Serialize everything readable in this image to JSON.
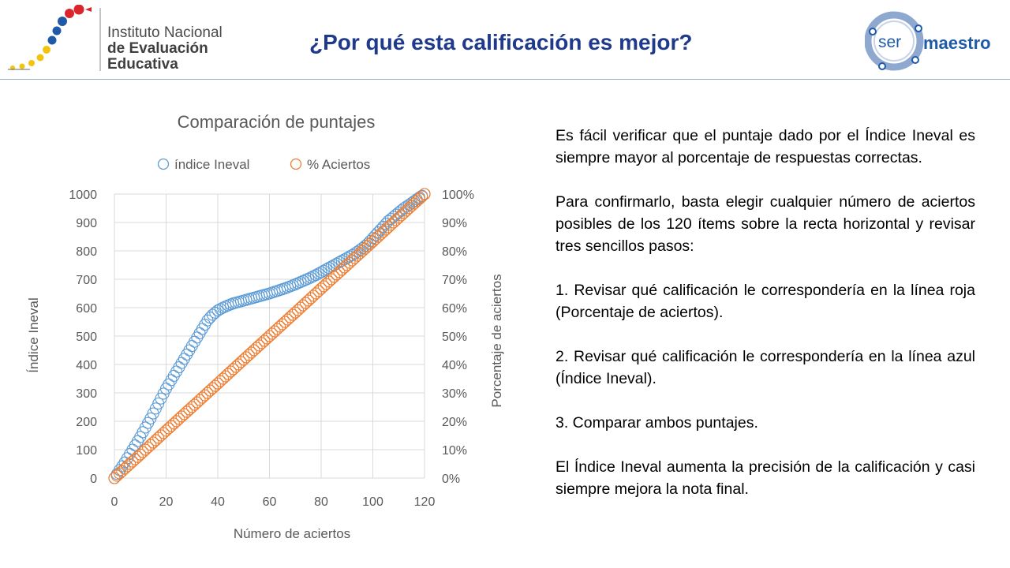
{
  "header": {
    "org_line1": "Instituto Nacional",
    "org_line2": "de Evaluación",
    "org_line3": "Educativa",
    "title": "¿Por qué esta calificación es mejor?",
    "right_logo_ser": "ser",
    "right_logo_maestro": "maestro",
    "colors": {
      "title": "#1f3a8a",
      "logo_blue": "#1f5aa8",
      "logo_red": "#d9262c",
      "logo_yellow": "#f2c40f"
    }
  },
  "chart_data": {
    "type": "scatter",
    "title": "Comparación de puntajes",
    "xlabel": "Número de aciertos",
    "ylabel": "Índice Ineval",
    "y2label": "Porcentaje de aciertos",
    "xlim": [
      0,
      120
    ],
    "ylim": [
      0,
      1000
    ],
    "y2lim": [
      0,
      1
    ],
    "x_ticks": [
      "0",
      "20",
      "40",
      "60",
      "80",
      "100",
      "120"
    ],
    "y_ticks": [
      "0",
      "100",
      "200",
      "300",
      "400",
      "500",
      "600",
      "700",
      "800",
      "900",
      "1000"
    ],
    "y2_ticks": [
      "0%",
      "10%",
      "20%",
      "30%",
      "40%",
      "50%",
      "60%",
      "70%",
      "80%",
      "90%",
      "100%"
    ],
    "grid": true,
    "legend_position": "top",
    "series": [
      {
        "name": "índice Ineval",
        "color": "#5b9bd5",
        "axis": "left",
        "points": [
          [
            0,
            0
          ],
          [
            2,
            28
          ],
          [
            4,
            55
          ],
          [
            6,
            85
          ],
          [
            8,
            115
          ],
          [
            10,
            145
          ],
          [
            12,
            178
          ],
          [
            14,
            210
          ],
          [
            16,
            245
          ],
          [
            18,
            280
          ],
          [
            20,
            315
          ],
          [
            22,
            345
          ],
          [
            24,
            375
          ],
          [
            26,
            405
          ],
          [
            28,
            435
          ],
          [
            30,
            465
          ],
          [
            32,
            495
          ],
          [
            34,
            525
          ],
          [
            36,
            555
          ],
          [
            38,
            575
          ],
          [
            40,
            590
          ],
          [
            42,
            600
          ],
          [
            44,
            608
          ],
          [
            46,
            615
          ],
          [
            48,
            620
          ],
          [
            50,
            625
          ],
          [
            52,
            630
          ],
          [
            54,
            635
          ],
          [
            56,
            640
          ],
          [
            58,
            645
          ],
          [
            60,
            650
          ],
          [
            62,
            656
          ],
          [
            64,
            662
          ],
          [
            66,
            668
          ],
          [
            68,
            675
          ],
          [
            70,
            682
          ],
          [
            72,
            690
          ],
          [
            74,
            698
          ],
          [
            76,
            706
          ],
          [
            78,
            715
          ],
          [
            80,
            725
          ],
          [
            82,
            735
          ],
          [
            84,
            745
          ],
          [
            86,
            755
          ],
          [
            88,
            765
          ],
          [
            90,
            775
          ],
          [
            92,
            785
          ],
          [
            94,
            797
          ],
          [
            96,
            810
          ],
          [
            98,
            825
          ],
          [
            100,
            845
          ],
          [
            102,
            865
          ],
          [
            104,
            885
          ],
          [
            106,
            905
          ],
          [
            108,
            920
          ],
          [
            110,
            935
          ],
          [
            112,
            950
          ],
          [
            114,
            962
          ],
          [
            116,
            975
          ],
          [
            118,
            988
          ],
          [
            120,
            1000
          ]
        ]
      },
      {
        "name": "% Aciertos",
        "color": "#ed7d31",
        "axis": "right",
        "points": [
          [
            0,
            0
          ],
          [
            10,
            0.083
          ],
          [
            20,
            0.167
          ],
          [
            30,
            0.25
          ],
          [
            40,
            0.333
          ],
          [
            50,
            0.417
          ],
          [
            60,
            0.5
          ],
          [
            70,
            0.583
          ],
          [
            80,
            0.667
          ],
          [
            90,
            0.75
          ],
          [
            100,
            0.833
          ],
          [
            110,
            0.917
          ],
          [
            120,
            1.0
          ]
        ]
      }
    ]
  },
  "text": {
    "p1": "Es fácil verificar que el puntaje dado por el Índice Ineval es siempre mayor al porcentaje de respuestas correctas.",
    "p2": "Para confirmarlo, basta elegir cualquier número de aciertos posibles de los 120 ítems sobre la recta horizontal y revisar tres sencillos pasos:",
    "p3": "1. Revisar qué calificación le correspondería en la línea roja (Porcentaje de aciertos).",
    "p4": "2. Revisar qué calificación le correspondería en la línea azul (Índice Ineval).",
    "p5": "3. Comparar ambos puntajes.",
    "p6": "El Índice Ineval aumenta la precisión de la calificación y casi siempre mejora la nota final."
  }
}
